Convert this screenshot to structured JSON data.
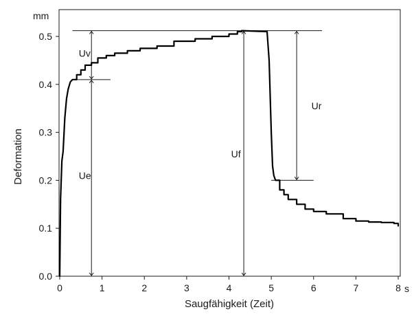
{
  "chart_data": {
    "type": "line",
    "title": "",
    "xlabel": "Saugfähigkeit (Zeit)",
    "ylabel": "Deformation",
    "x_unit": "s",
    "y_unit": "mm",
    "xlim": [
      0,
      8
    ],
    "ylim": [
      0,
      0.52
    ],
    "x_ticks": [
      "0",
      "1",
      "2",
      "3",
      "4",
      "5",
      "6",
      "7",
      "8"
    ],
    "y_ticks": [
      "0.0",
      "0.1",
      "0.2",
      "0.3",
      "0.4",
      "0.5"
    ],
    "grid": false,
    "series": [
      {
        "x": [
          0,
          0.02,
          0.05,
          0.08,
          0.12,
          0.16,
          0.2,
          0.25,
          0.3,
          0.4,
          0.5,
          0.6,
          0.75,
          0.9,
          1.1,
          1.3,
          1.6,
          1.9,
          2.3,
          2.7,
          3.2,
          3.6,
          4.0,
          4.2,
          4.3,
          4.9,
          4.95,
          5.0,
          5.03,
          5.06,
          5.1,
          5.2,
          5.3,
          5.4,
          5.6,
          5.8,
          6.0,
          6.3,
          6.7,
          7.0,
          7.3,
          7.6,
          7.9,
          8.0
        ],
        "y": [
          0.0,
          0.16,
          0.24,
          0.26,
          0.33,
          0.37,
          0.39,
          0.405,
          0.41,
          0.42,
          0.43,
          0.44,
          0.445,
          0.455,
          0.46,
          0.465,
          0.47,
          0.475,
          0.48,
          0.49,
          0.495,
          0.5,
          0.505,
          0.51,
          0.512,
          0.51,
          0.45,
          0.3,
          0.23,
          0.21,
          0.2,
          0.18,
          0.17,
          0.16,
          0.15,
          0.14,
          0.135,
          0.13,
          0.12,
          0.115,
          0.113,
          0.112,
          0.11,
          0.105
        ]
      }
    ],
    "reference_lines": [
      {
        "from_x": 0.3,
        "to_x": 6.2,
        "y": 0.512
      },
      {
        "from_x": 0.3,
        "to_x": 1.2,
        "y": 0.41
      },
      {
        "from_x": 5.0,
        "to_x": 6.0,
        "y": 0.2
      }
    ],
    "annotations": [
      {
        "label": "Uv",
        "x": 0.75,
        "y_from": 0.41,
        "y_to": 0.512,
        "label_x": 0.45,
        "label_y": 0.465
      },
      {
        "label": "Ue",
        "x": 0.75,
        "y_from": 0.0,
        "y_to": 0.41,
        "label_x": 0.45,
        "label_y": 0.21
      },
      {
        "label": "Uf",
        "x": 4.35,
        "y_from": 0.0,
        "y_to": 0.512,
        "label_x": 4.05,
        "label_y": 0.255
      },
      {
        "label": "Ur",
        "x": 5.6,
        "y_from": 0.2,
        "y_to": 0.512,
        "label_x": 5.95,
        "label_y": 0.355
      }
    ]
  }
}
